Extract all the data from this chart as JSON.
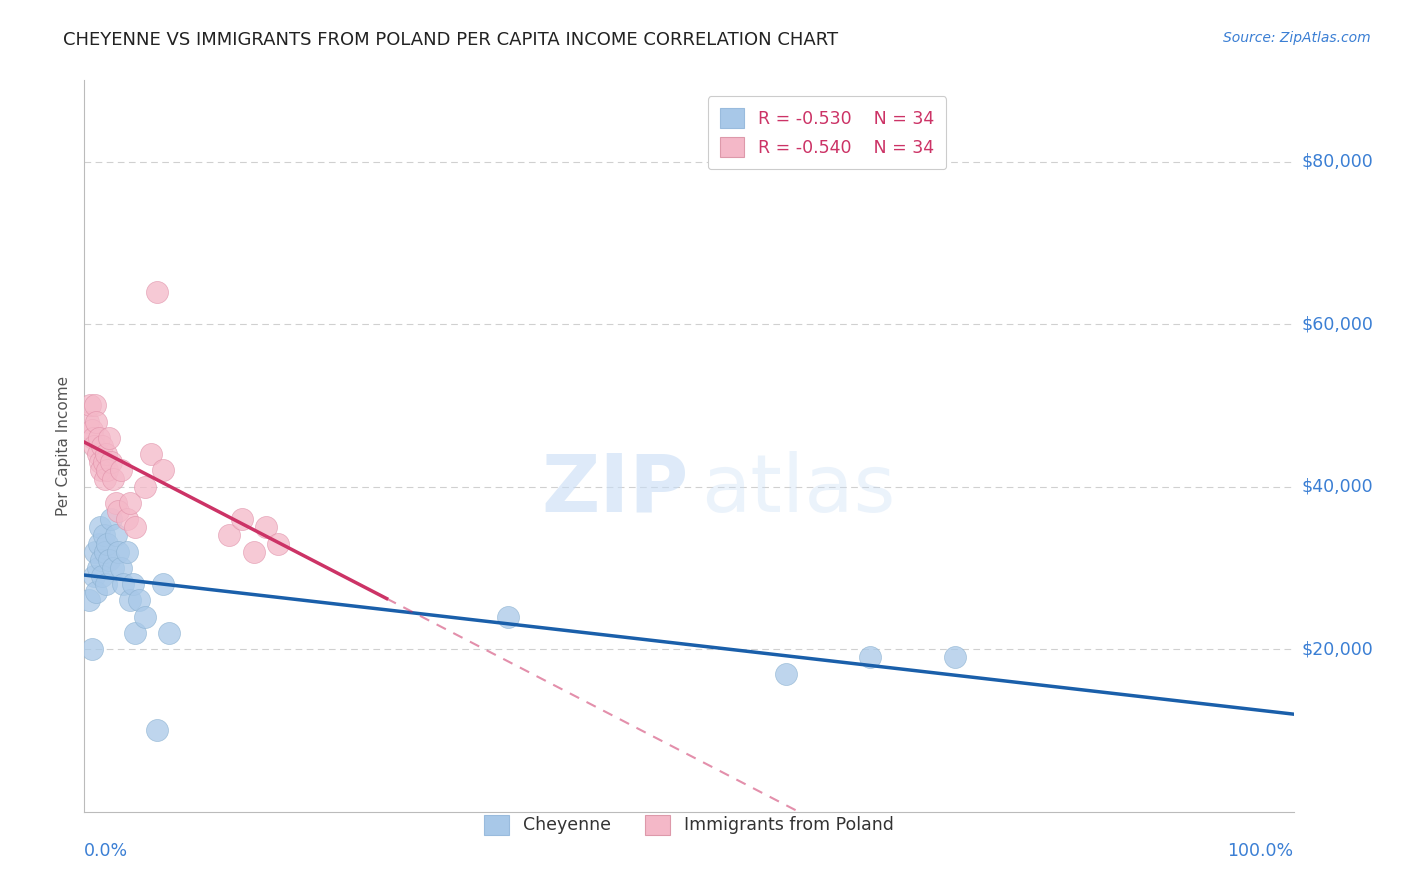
{
  "title": "CHEYENNE VS IMMIGRANTS FROM POLAND PER CAPITA INCOME CORRELATION CHART",
  "source_text": "Source: ZipAtlas.com",
  "ylabel": "Per Capita Income",
  "xlim": [
    0,
    1.0
  ],
  "ylim": [
    0,
    90000
  ],
  "yticks": [
    0,
    20000,
    40000,
    60000,
    80000
  ],
  "ytick_labels": [
    "",
    "$20,000",
    "$40,000",
    "$60,000",
    "$80,000"
  ],
  "bg_color": "#ffffff",
  "grid_color": "#d0d0d0",
  "blue_color": "#a8c8e8",
  "pink_color": "#f4b8c8",
  "line_blue": "#1a5faa",
  "line_pink": "#cc3366",
  "cheyenne_label": "Cheyenne",
  "poland_label": "Immigrants from Poland",
  "blue_x": [
    0.004,
    0.006,
    0.008,
    0.009,
    0.01,
    0.011,
    0.012,
    0.013,
    0.014,
    0.015,
    0.016,
    0.017,
    0.018,
    0.019,
    0.02,
    0.022,
    0.024,
    0.026,
    0.028,
    0.03,
    0.032,
    0.035,
    0.038,
    0.04,
    0.042,
    0.045,
    0.05,
    0.06,
    0.065,
    0.07,
    0.35,
    0.58,
    0.65,
    0.72
  ],
  "blue_y": [
    26000,
    20000,
    29000,
    32000,
    27000,
    30000,
    33000,
    35000,
    31000,
    29000,
    34000,
    32000,
    28000,
    33000,
    31000,
    36000,
    30000,
    34000,
    32000,
    30000,
    28000,
    32000,
    26000,
    28000,
    22000,
    26000,
    24000,
    10000,
    28000,
    22000,
    24000,
    17000,
    19000,
    19000
  ],
  "pink_x": [
    0.003,
    0.005,
    0.006,
    0.007,
    0.008,
    0.009,
    0.01,
    0.011,
    0.012,
    0.013,
    0.014,
    0.015,
    0.016,
    0.017,
    0.018,
    0.019,
    0.02,
    0.022,
    0.024,
    0.026,
    0.028,
    0.03,
    0.035,
    0.038,
    0.042,
    0.05,
    0.055,
    0.06,
    0.065,
    0.12,
    0.13,
    0.14,
    0.15,
    0.16
  ],
  "pink_y": [
    48000,
    50000,
    47000,
    46000,
    45000,
    50000,
    48000,
    44000,
    46000,
    43000,
    42000,
    45000,
    43000,
    41000,
    44000,
    42000,
    46000,
    43000,
    41000,
    38000,
    37000,
    42000,
    36000,
    38000,
    35000,
    40000,
    44000,
    64000,
    42000,
    34000,
    36000,
    32000,
    35000,
    33000
  ],
  "legend_r_blue": "R = −0.530",
  "legend_n_blue": "N = 34",
  "legend_r_pink": "R = −0.540",
  "legend_n_pink": "N = 34"
}
